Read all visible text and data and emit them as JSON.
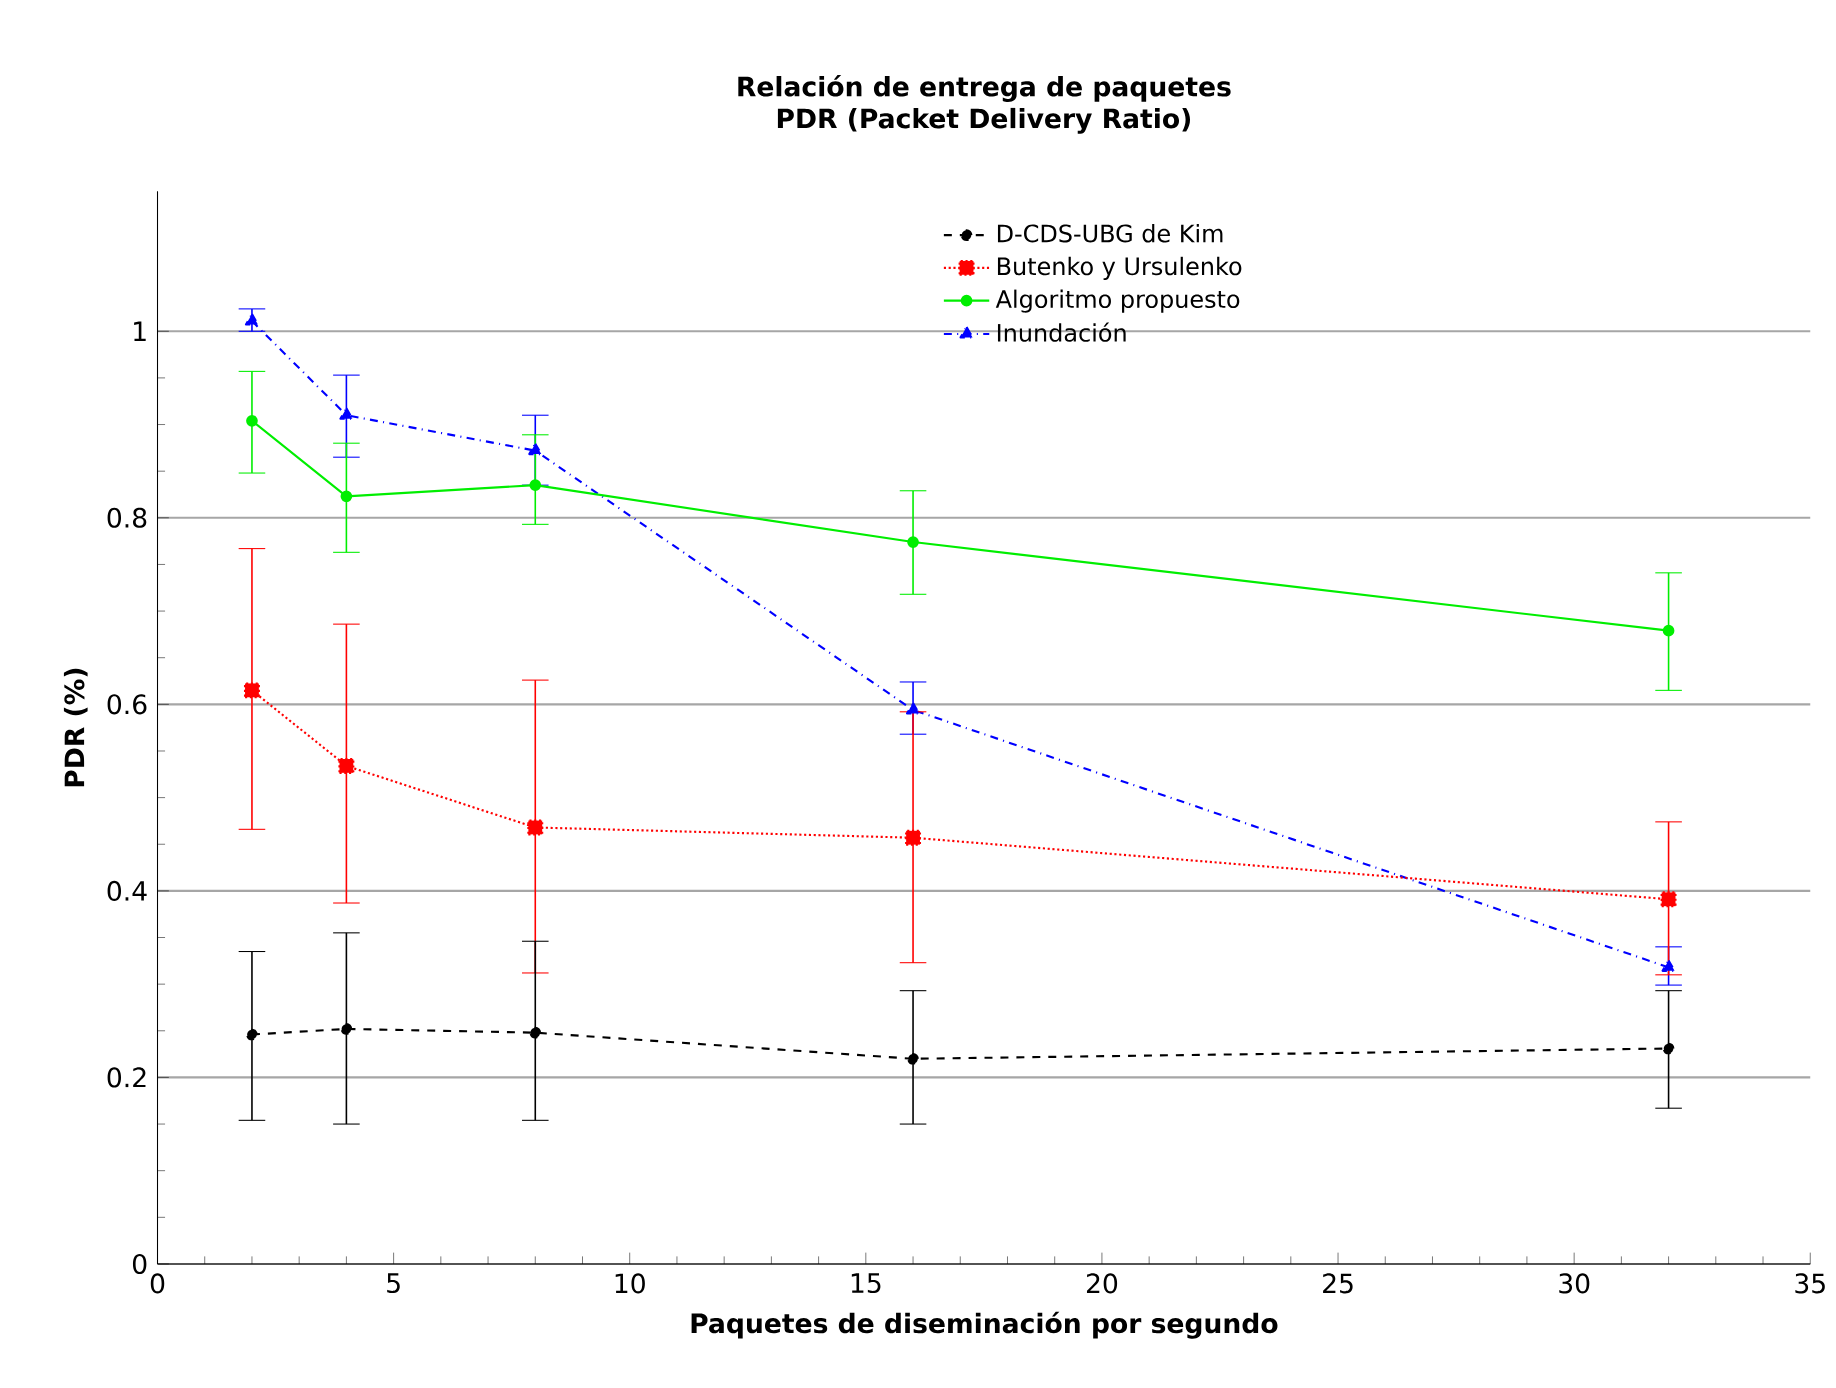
{
  "chart_data": {
    "type": "line",
    "title": "Relación de entrega de paquetes",
    "subtitle": "PDR (Packet Delivery Ratio)",
    "xlabel": "Paquetes de diseminación por segundo",
    "ylabel": "PDR (%)",
    "x": [
      2,
      4,
      8,
      16,
      32
    ],
    "xlim": [
      0,
      35
    ],
    "xticks": [
      0,
      5,
      10,
      15,
      20,
      25,
      30,
      35
    ],
    "ylim": [
      0,
      1.15
    ],
    "yticks": [
      0,
      0.2,
      0.4,
      0.6,
      0.8,
      1
    ],
    "grid": "y",
    "legend": "top right",
    "series": [
      {
        "name": "D-CDS-UBG de Kim",
        "color": "#000000",
        "marker": "circle",
        "line_style": "dashed",
        "values": [
          0.246,
          0.252,
          0.248,
          0.22,
          0.231
        ],
        "errors": [
          [
            0.154,
            0.335
          ],
          [
            0.15,
            0.355
          ],
          [
            0.154,
            0.346
          ],
          [
            0.15,
            0.293
          ],
          [
            0.167,
            0.293
          ]
        ]
      },
      {
        "name": "Butenko y Ursulenko",
        "color": "#ff0000",
        "marker": "square",
        "line_style": "dotted",
        "values": [
          0.615,
          0.534,
          0.468,
          0.457,
          0.391
        ],
        "errors": [
          [
            0.466,
            0.767
          ],
          [
            0.387,
            0.686
          ],
          [
            0.312,
            0.626
          ],
          [
            0.323,
            0.592
          ],
          [
            0.31,
            0.474
          ]
        ]
      },
      {
        "name": "Algoritmo propuesto",
        "color": "#00ee00",
        "marker": "circle",
        "line_style": "solid",
        "values": [
          0.904,
          0.823,
          0.835,
          0.774,
          0.679
        ],
        "errors": [
          [
            0.848,
            0.957
          ],
          [
            0.763,
            0.88
          ],
          [
            0.793,
            0.889
          ],
          [
            0.718,
            0.829
          ],
          [
            0.615,
            0.741
          ]
        ]
      },
      {
        "name": "Inundación",
        "color": "#0000ff",
        "marker": "triangle",
        "line_style": "dashdot",
        "values": [
          1.011,
          0.91,
          0.872,
          0.594,
          0.318
        ],
        "errors": [
          [
            1.0,
            1.024
          ],
          [
            0.865,
            0.953
          ],
          [
            0.835,
            0.91
          ],
          [
            0.568,
            0.624
          ],
          [
            0.299,
            0.34
          ]
        ]
      }
    ]
  }
}
